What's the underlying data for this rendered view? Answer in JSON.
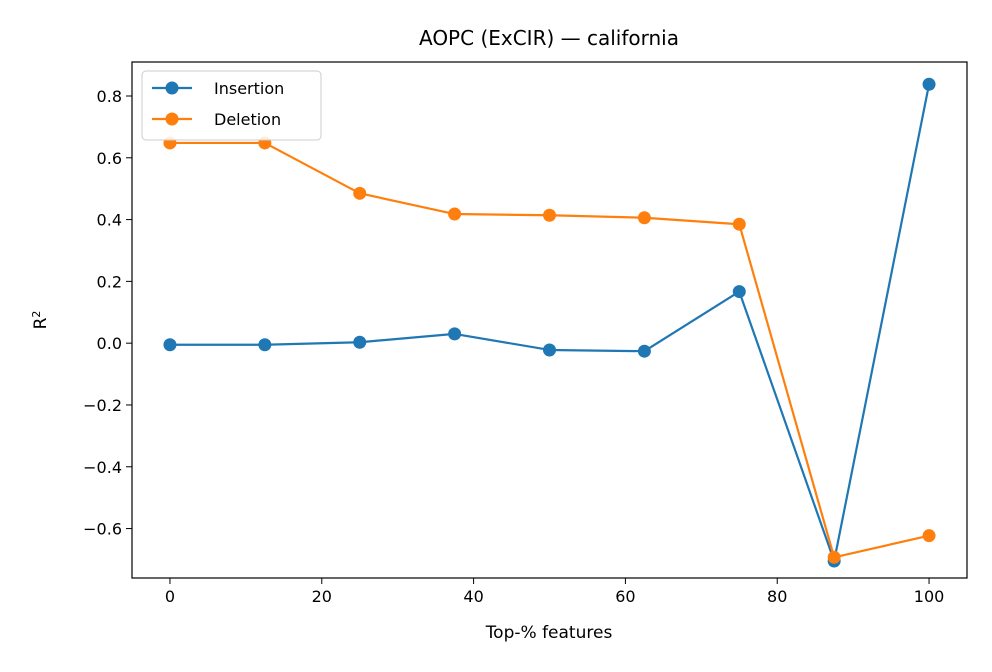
{
  "chart_data": {
    "type": "line",
    "title": "AOPC (ExCIR) — california",
    "xlabel": "Top-% features",
    "ylabel": "R",
    "ylabel_superscript": "2",
    "xlim": [
      -5,
      105
    ],
    "ylim": [
      -0.76,
      0.91
    ],
    "xticks": [
      0,
      20,
      40,
      60,
      80,
      100
    ],
    "xtick_labels": [
      "0",
      "20",
      "40",
      "60",
      "80",
      "100"
    ],
    "yticks": [
      -0.6,
      -0.4,
      -0.2,
      0.0,
      0.2,
      0.4,
      0.6,
      0.8
    ],
    "ytick_labels": [
      "−0.6",
      "−0.4",
      "−0.2",
      "0.0",
      "0.2",
      "0.4",
      "0.6",
      "0.8"
    ],
    "grid": false,
    "legend": "top-left",
    "x": [
      0,
      12.5,
      25,
      37.5,
      50,
      62.5,
      75,
      87.5,
      100
    ],
    "series": [
      {
        "name": "Insertion",
        "color": "#1f77b4",
        "values": [
          -0.005,
          -0.005,
          0.003,
          0.03,
          -0.022,
          -0.026,
          0.167,
          -0.705,
          0.838
        ]
      },
      {
        "name": "Deletion",
        "color": "#ff7f0e",
        "values": [
          0.648,
          0.648,
          0.485,
          0.418,
          0.414,
          0.406,
          0.385,
          -0.693,
          -0.623
        ]
      }
    ]
  }
}
